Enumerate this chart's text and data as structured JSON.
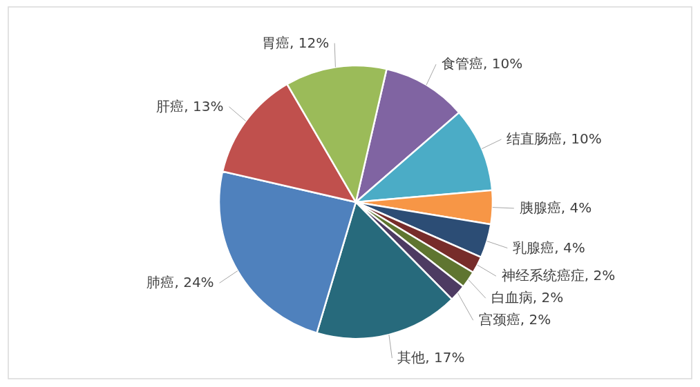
{
  "chart_data": {
    "type": "pie",
    "categories": [
      "食管癌",
      "结直肠癌",
      "胰腺癌",
      "乳腺癌",
      "神经系统癌症",
      "白血病",
      "宫颈癌",
      "其他",
      "肺癌",
      "肝癌",
      "胃癌"
    ],
    "values": [
      10,
      10,
      4,
      4,
      2,
      2,
      2,
      17,
      24,
      13,
      12
    ],
    "value_labels": [
      "10%",
      "10%",
      "4%",
      "4%",
      "2%",
      "2%",
      "2%",
      "17%",
      "24%",
      "13%",
      "12%"
    ],
    "colors": [
      "#8064a2",
      "#4bacc6",
      "#f79646",
      "#2c4d75",
      "#772c2a",
      "#5f7530",
      "#4d3b62",
      "#276a7c",
      "#4f81bd",
      "#c0504d",
      "#9bbb59"
    ]
  }
}
